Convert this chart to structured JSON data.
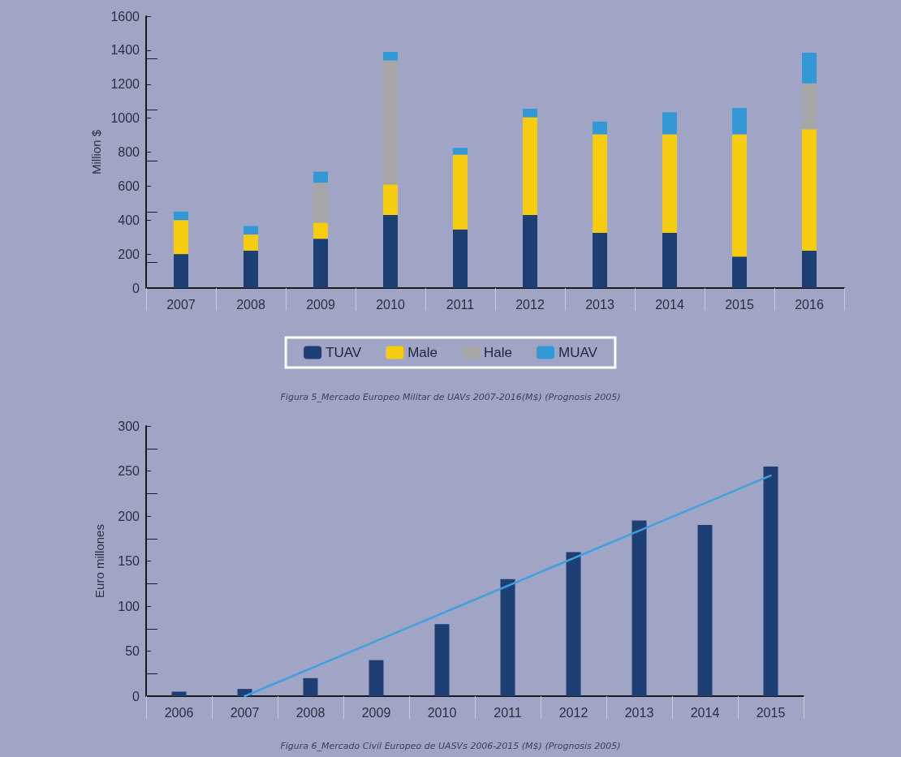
{
  "chart_data": [
    {
      "type": "bar",
      "stacked": true,
      "ylabel": "Million $",
      "categories": [
        "2007",
        "2008",
        "2009",
        "2010",
        "2011",
        "2012",
        "2013",
        "2014",
        "2015",
        "2016"
      ],
      "series": [
        {
          "name": "TUAV",
          "color": "#1d3f73",
          "values": [
            200,
            220,
            290,
            430,
            345,
            430,
            325,
            325,
            185,
            220
          ]
        },
        {
          "name": "Male",
          "color": "#f5cc0f",
          "values": [
            200,
            95,
            95,
            180,
            440,
            575,
            580,
            580,
            720,
            715
          ]
        },
        {
          "name": "Hale",
          "color": "#a6a6a6",
          "values": [
            0,
            0,
            235,
            730,
            0,
            0,
            0,
            0,
            0,
            270
          ]
        },
        {
          "name": "MUAV",
          "color": "#3399d6",
          "values": [
            50,
            50,
            65,
            50,
            40,
            50,
            75,
            130,
            155,
            180
          ]
        }
      ],
      "ylim": [
        0,
        1600
      ],
      "yticks": [
        0,
        200,
        400,
        600,
        800,
        1000,
        1200,
        1400,
        1600
      ],
      "grid": false,
      "legend": "bottom",
      "annotations": [
        "Figura 5_Mercado Europeo Militar de UAVs 2007-2016(M$) (Prognosis 2005)"
      ]
    },
    {
      "type": "bar",
      "ylabel": "Euro millones",
      "categories": [
        "2006",
        "2007",
        "2008",
        "2009",
        "2010",
        "2011",
        "2012",
        "2013",
        "2014",
        "2015"
      ],
      "series": [
        {
          "color": "#1d3f73",
          "values": [
            5,
            8,
            20,
            40,
            80,
            130,
            160,
            195,
            190,
            255
          ]
        },
        {
          "type": "line",
          "color": "#3fa0e0",
          "values": [
            null,
            0,
            null,
            null,
            null,
            null,
            null,
            null,
            null,
            245
          ]
        }
      ],
      "ylim": [
        0,
        300
      ],
      "yticks": [
        0,
        50,
        100,
        150,
        200,
        250,
        300
      ],
      "grid": false,
      "legend": false,
      "annotations": [
        "Figura 6_Mercado Civil Europeo de UASVs 2006-2015 (M$) (Prognosis 2005)"
      ]
    }
  ]
}
